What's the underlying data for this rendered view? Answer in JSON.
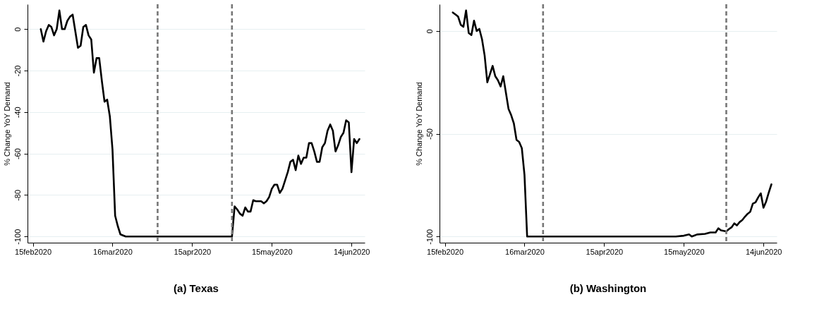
{
  "chart_data": [
    {
      "type": "line",
      "title": "(a) Texas",
      "ylabel": "% Change YoY Demand",
      "x": [
        "2020-02-18",
        "2020-02-19",
        "2020-02-20",
        "2020-02-21",
        "2020-02-22",
        "2020-02-23",
        "2020-02-24",
        "2020-02-25",
        "2020-02-26",
        "2020-02-27",
        "2020-02-28",
        "2020-02-29",
        "2020-03-01",
        "2020-03-02",
        "2020-03-03",
        "2020-03-04",
        "2020-03-05",
        "2020-03-06",
        "2020-03-07",
        "2020-03-08",
        "2020-03-09",
        "2020-03-10",
        "2020-03-11",
        "2020-03-12",
        "2020-03-13",
        "2020-03-14",
        "2020-03-15",
        "2020-03-16",
        "2020-03-17",
        "2020-03-18",
        "2020-03-19",
        "2020-03-20",
        "2020-03-21",
        "2020-04-10",
        "2020-04-30",
        "2020-05-01",
        "2020-05-02",
        "2020-05-03",
        "2020-05-04",
        "2020-05-05",
        "2020-05-06",
        "2020-05-07",
        "2020-05-08",
        "2020-05-09",
        "2020-05-10",
        "2020-05-11",
        "2020-05-12",
        "2020-05-13",
        "2020-05-14",
        "2020-05-15",
        "2020-05-16",
        "2020-05-17",
        "2020-05-18",
        "2020-05-19",
        "2020-05-20",
        "2020-05-21",
        "2020-05-22",
        "2020-05-23",
        "2020-05-24",
        "2020-05-25",
        "2020-05-26",
        "2020-05-27",
        "2020-05-28",
        "2020-05-29",
        "2020-05-30",
        "2020-05-31",
        "2020-06-01",
        "2020-06-02",
        "2020-06-03",
        "2020-06-04",
        "2020-06-05",
        "2020-06-06",
        "2020-06-07",
        "2020-06-08",
        "2020-06-09",
        "2020-06-10",
        "2020-06-11",
        "2020-06-12",
        "2020-06-13",
        "2020-06-14",
        "2020-06-15",
        "2020-06-16",
        "2020-06-17"
      ],
      "series": [
        {
          "color": "#000000",
          "values": [
            0,
            -6,
            -1,
            2,
            1,
            -3,
            0,
            9,
            0,
            0,
            4,
            6,
            7,
            -1,
            -9,
            -8,
            1,
            2,
            -3,
            -5,
            -21,
            -14,
            -14,
            -25,
            -35,
            -34,
            -42,
            -58,
            -90,
            -95,
            -99,
            -99.5,
            -100,
            -100,
            -100,
            -85.5,
            -87,
            -89,
            -90,
            -86,
            -88,
            -88,
            -82.5,
            -83,
            -83,
            -83,
            -84,
            -83,
            -81,
            -77,
            -75,
            -75,
            -79,
            -77,
            -73,
            -69,
            -64,
            -63,
            -68,
            -61,
            -65,
            -62,
            -62,
            -55,
            -55,
            -59,
            -64,
            -64,
            -57,
            -55,
            -49,
            -46,
            -49,
            -59,
            -56,
            -52,
            -50,
            -44,
            -45,
            -69,
            -53,
            -55,
            -53
          ]
        }
      ],
      "xlim": [
        "2020-02-13",
        "2020-06-19"
      ],
      "ylim": [
        -103,
        12
      ],
      "xticks": [
        {
          "value": "2020-02-15",
          "label": "15feb2020"
        },
        {
          "value": "2020-03-16",
          "label": "16mar2020"
        },
        {
          "value": "2020-04-15",
          "label": "15apr2020"
        },
        {
          "value": "2020-05-15",
          "label": "15may2020"
        },
        {
          "value": "2020-06-14",
          "label": "14jun2020"
        }
      ],
      "yticks": [
        -100,
        -80,
        -60,
        -40,
        -20,
        0
      ],
      "grid": "y",
      "ref_lines": [
        {
          "axis": "x",
          "value": "2020-04-02",
          "color": "#777777",
          "line_style": "dashed"
        },
        {
          "axis": "x",
          "value": "2020-04-30",
          "color": "#777777",
          "line_style": "dashed"
        }
      ]
    },
    {
      "type": "line",
      "title": "(b) Washington",
      "ylabel": "% Change YoY Demand",
      "x": [
        "2020-02-18",
        "2020-02-19",
        "2020-02-20",
        "2020-02-21",
        "2020-02-22",
        "2020-02-23",
        "2020-02-24",
        "2020-02-25",
        "2020-02-26",
        "2020-02-27",
        "2020-02-28",
        "2020-02-29",
        "2020-03-01",
        "2020-03-02",
        "2020-03-03",
        "2020-03-04",
        "2020-03-05",
        "2020-03-06",
        "2020-03-07",
        "2020-03-08",
        "2020-03-09",
        "2020-03-10",
        "2020-03-11",
        "2020-03-12",
        "2020-03-13",
        "2020-03-14",
        "2020-03-15",
        "2020-03-16",
        "2020-03-17",
        "2020-04-15",
        "2020-05-12",
        "2020-05-15",
        "2020-05-17",
        "2020-05-18",
        "2020-05-20",
        "2020-05-23",
        "2020-05-25",
        "2020-05-27",
        "2020-05-28",
        "2020-05-29",
        "2020-05-31",
        "2020-06-01",
        "2020-06-02",
        "2020-06-03",
        "2020-06-04",
        "2020-06-05",
        "2020-06-06",
        "2020-06-07",
        "2020-06-08",
        "2020-06-09",
        "2020-06-10",
        "2020-06-11",
        "2020-06-12",
        "2020-06-13",
        "2020-06-14",
        "2020-06-15",
        "2020-06-16",
        "2020-06-17"
      ],
      "series": [
        {
          "color": "#000000",
          "values": [
            9,
            8,
            7,
            3,
            2,
            10,
            -1,
            -2,
            5,
            0,
            1,
            -4,
            -12,
            -25,
            -21,
            -17,
            -22,
            -24,
            -27,
            -22,
            -30,
            -38,
            -41,
            -45,
            -53,
            -54,
            -57,
            -70,
            -100,
            -100,
            -100,
            -99.6,
            -99,
            -100,
            -99,
            -98.7,
            -98,
            -98,
            -96,
            -97,
            -97.5,
            -96.4,
            -95.5,
            -93.6,
            -94.6,
            -93,
            -92,
            -90.4,
            -89,
            -88,
            -84,
            -83.4,
            -81,
            -79,
            -86,
            -83,
            -78.6,
            -74.6
          ]
        }
      ],
      "xlim": [
        "2020-02-13",
        "2020-06-19"
      ],
      "ylim": [
        -103,
        13
      ],
      "xticks": [
        {
          "value": "2020-02-15",
          "label": "15feb2020"
        },
        {
          "value": "2020-03-16",
          "label": "16mar2020"
        },
        {
          "value": "2020-04-15",
          "label": "15apr2020"
        },
        {
          "value": "2020-05-15",
          "label": "15may2020"
        },
        {
          "value": "2020-06-14",
          "label": "14jun2020"
        }
      ],
      "yticks": [
        -100,
        -50,
        0
      ],
      "grid": "y",
      "ref_lines": [
        {
          "axis": "x",
          "value": "2020-03-23",
          "color": "#777777",
          "line_style": "dashed"
        },
        {
          "axis": "x",
          "value": "2020-05-31",
          "color": "#777777",
          "line_style": "dashed"
        }
      ]
    }
  ]
}
